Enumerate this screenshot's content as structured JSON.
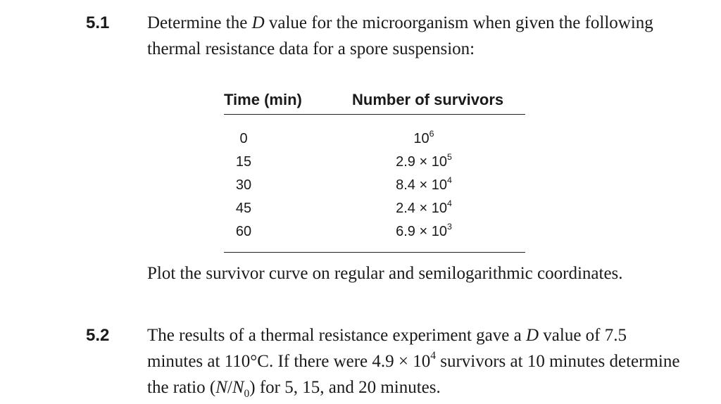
{
  "problem_1": {
    "number": "5.1",
    "text_prefix": "Determine the ",
    "text_var": "D",
    "text_suffix": " value for the microorganism when given the following thermal resistance data for a spore suspension:",
    "table": {
      "headers": [
        "Time (min)",
        "Number of survivors"
      ],
      "rows": [
        {
          "time": "0",
          "mantissa": "",
          "base": "10",
          "exp": "6"
        },
        {
          "time": "15",
          "mantissa": "2.9 × ",
          "base": "10",
          "exp": "5"
        },
        {
          "time": "30",
          "mantissa": "8.4 × ",
          "base": "10",
          "exp": "4"
        },
        {
          "time": "45",
          "mantissa": "2.4 × ",
          "base": "10",
          "exp": "4"
        },
        {
          "time": "60",
          "mantissa": "6.9 × ",
          "base": "10",
          "exp": "3"
        }
      ]
    },
    "instruction": "Plot the survivor curve on regular and semilogarithmic coordinates."
  },
  "problem_2": {
    "number": "5.2",
    "part_a": "The results of a thermal resistance experiment gave a ",
    "var_d": "D",
    "part_b": " value of 7.5 minutes at 110°C. If there were 4.9 × 10",
    "exp": "4",
    "part_c": " survivors at 10 minutes determine the ratio (",
    "var_n": "N",
    "slash": "/",
    "var_n0": "N",
    "sub0": "0",
    "part_d": ") for 5, 15, and 20 minutes."
  }
}
